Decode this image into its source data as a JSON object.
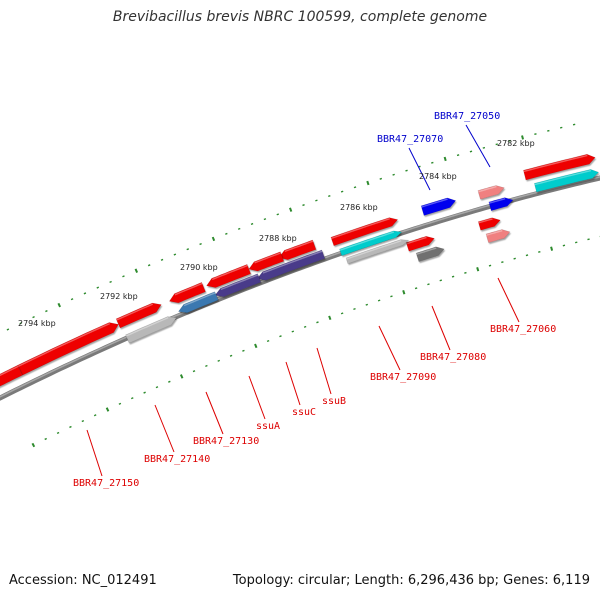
{
  "title": "Brevibacillus brevis NBRC 100599, complete genome",
  "accession": "Accession: NC_012491",
  "stats": "Topology: circular; Length: 6,296,436 bp; Genes: 6,119",
  "colors": {
    "backbone": "#7a7a7a",
    "ruler": "#2e8b2e",
    "red": "#ee0000",
    "pink": "#f08080",
    "blue": "#0000ee",
    "cyan": "#00cccc",
    "steel": "#3a78b0",
    "purple": "#4a3a8a",
    "gray": "#b8b8b8",
    "dark": "#707070",
    "label_red": "#dd0000",
    "label_blue": "#0000cc"
  },
  "ruler_ticks": [
    {
      "label": "2782 kbp"
    },
    {
      "label": "2784 kbp"
    },
    {
      "label": "2786 kbp"
    },
    {
      "label": "2788 kbp"
    },
    {
      "label": "2790 kbp"
    },
    {
      "label": "2792 kbp"
    },
    {
      "label": "2794 kbp"
    }
  ],
  "gene_labels": [
    {
      "text": "BBR47_27050",
      "color": "label_blue"
    },
    {
      "text": "BBR47_27070",
      "color": "label_blue"
    },
    {
      "text": "BBR47_27060",
      "color": "label_red"
    },
    {
      "text": "BBR47_27080",
      "color": "label_red"
    },
    {
      "text": "BBR47_27090",
      "color": "label_red"
    },
    {
      "text": "ssuB",
      "color": "label_red"
    },
    {
      "text": "ssuC",
      "color": "label_red"
    },
    {
      "text": "ssuA",
      "color": "label_red"
    },
    {
      "text": "BBR47_27130",
      "color": "label_red"
    },
    {
      "text": "BBR47_27140",
      "color": "label_red"
    },
    {
      "text": "BBR47_27150",
      "color": "label_red"
    }
  ]
}
